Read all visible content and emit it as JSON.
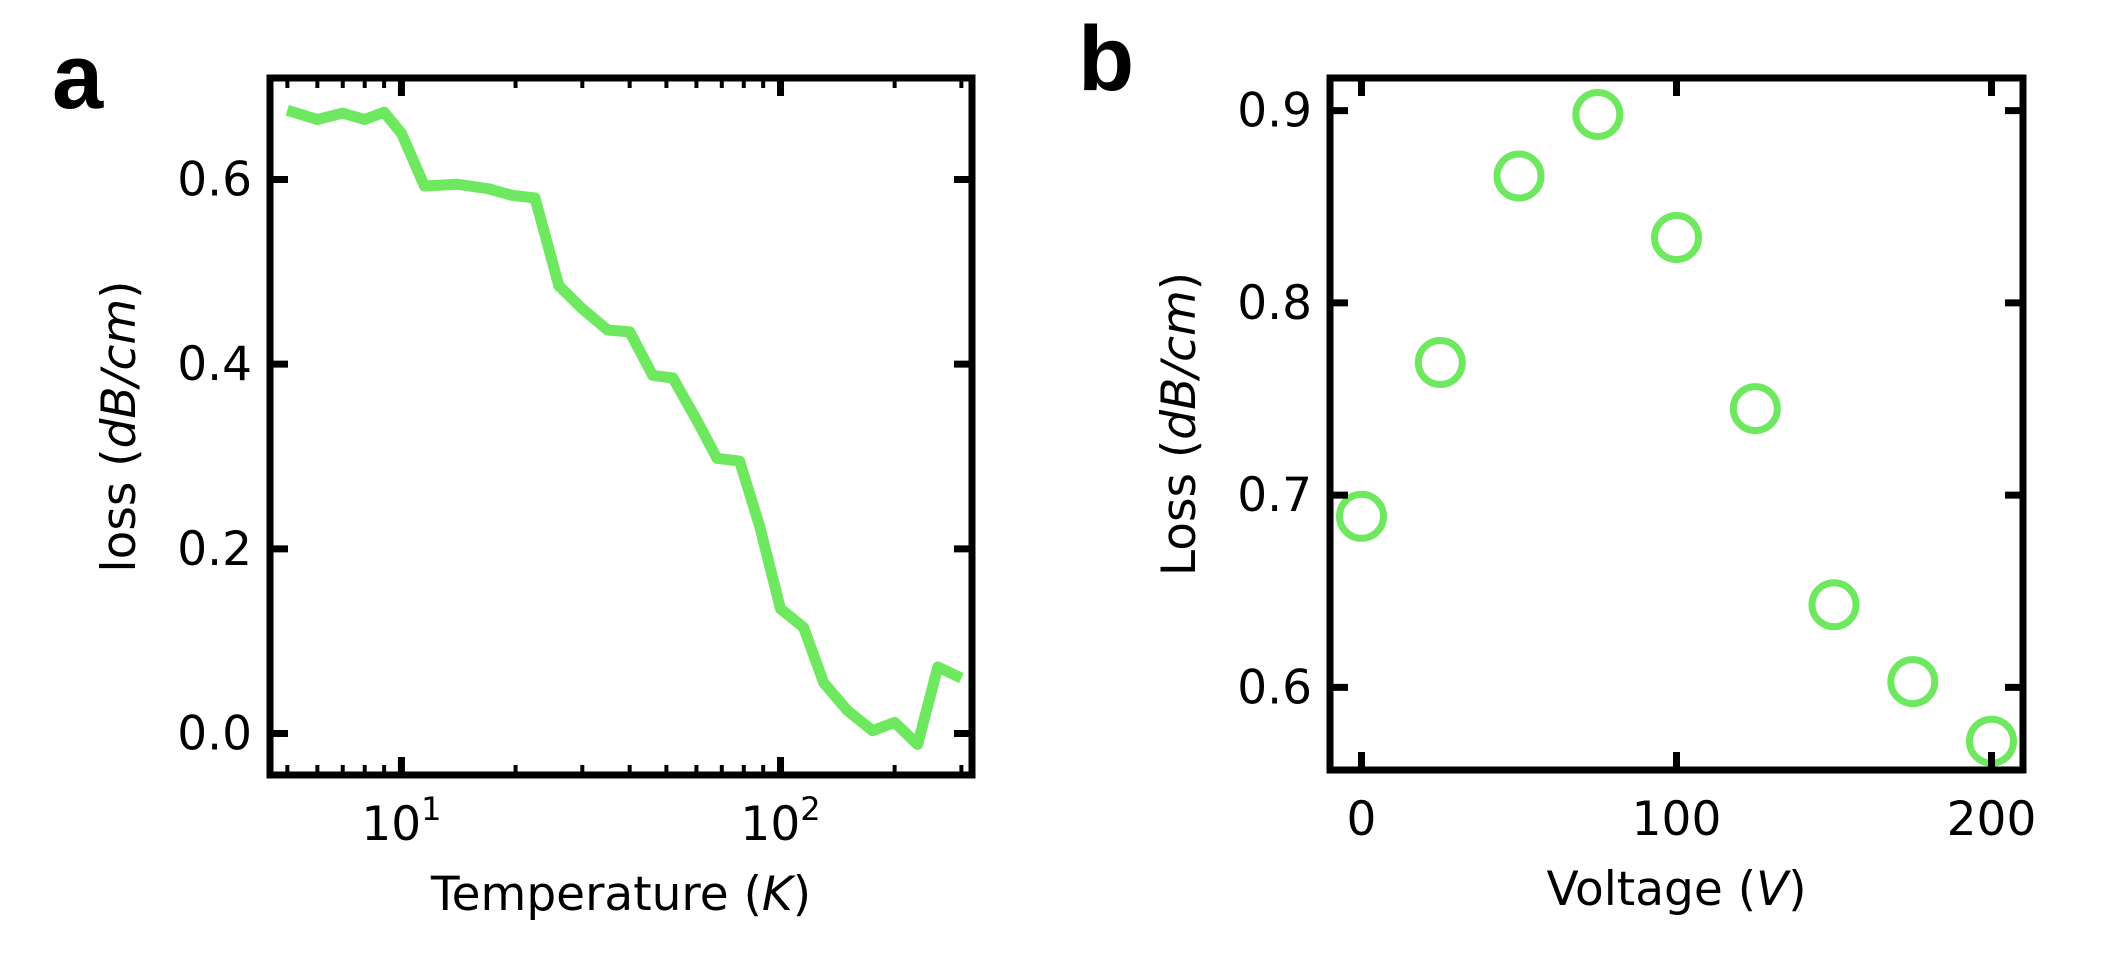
{
  "panels": {
    "a": {
      "letter": "a"
    },
    "b": {
      "letter": "b"
    }
  },
  "colors": {
    "series": "#6ee85f",
    "axis": "#000000"
  },
  "chart_data": [
    {
      "panel": "a",
      "type": "line",
      "title": "",
      "xlabel": {
        "prefix": "Temperature (",
        "unit": "K",
        "suffix": ")"
      },
      "ylabel": {
        "prefix": "loss (",
        "unit": "dB/cm",
        "suffix": ")"
      },
      "xscale": "log",
      "xlim": [
        4.5,
        320
      ],
      "ylim": [
        -0.045,
        0.71
      ],
      "xticks": [
        {
          "value": 10,
          "base": "10",
          "exp": "1"
        },
        {
          "value": 100,
          "base": "10",
          "exp": "2"
        }
      ],
      "yticks": [
        {
          "value": 0.0,
          "label": "0.0"
        },
        {
          "value": 0.2,
          "label": "0.2"
        },
        {
          "value": 0.4,
          "label": "0.4"
        },
        {
          "value": 0.6,
          "label": "0.6"
        }
      ],
      "grid": false,
      "x": [
        5,
        6,
        7,
        8,
        9,
        10,
        11.5,
        14,
        17,
        19.5,
        22.5,
        26,
        30,
        35,
        40,
        46,
        52,
        60,
        68,
        78,
        88,
        100,
        115,
        130,
        150,
        175,
        200,
        230,
        260,
        300
      ],
      "y": [
        0.675,
        0.665,
        0.672,
        0.665,
        0.673,
        0.65,
        0.593,
        0.595,
        0.59,
        0.583,
        0.58,
        0.485,
        0.46,
        0.437,
        0.435,
        0.388,
        0.385,
        0.34,
        0.298,
        0.295,
        0.225,
        0.135,
        0.115,
        0.055,
        0.025,
        0.003,
        0.012,
        -0.012,
        0.072,
        0.06
      ]
    },
    {
      "panel": "b",
      "type": "scatter",
      "title": "",
      "xlabel": {
        "prefix": "Voltage (",
        "unit": "V",
        "suffix": ")"
      },
      "ylabel": {
        "prefix": "Loss (",
        "unit": "dB/cm",
        "suffix": ")"
      },
      "xscale": "linear",
      "xlim": [
        -10,
        210
      ],
      "ylim": [
        0.557,
        0.917
      ],
      "xticks": [
        {
          "value": 0,
          "label": "0"
        },
        {
          "value": 100,
          "label": "100"
        },
        {
          "value": 200,
          "label": "200"
        }
      ],
      "yticks": [
        {
          "value": 0.6,
          "label": "0.6"
        },
        {
          "value": 0.7,
          "label": "0.7"
        },
        {
          "value": 0.8,
          "label": "0.8"
        },
        {
          "value": 0.9,
          "label": "0.9"
        }
      ],
      "grid": false,
      "x": [
        0,
        25,
        50,
        75,
        100,
        125,
        150,
        175,
        200
      ],
      "y": [
        0.689,
        0.769,
        0.866,
        0.898,
        0.834,
        0.745,
        0.643,
        0.603,
        0.572
      ]
    }
  ]
}
